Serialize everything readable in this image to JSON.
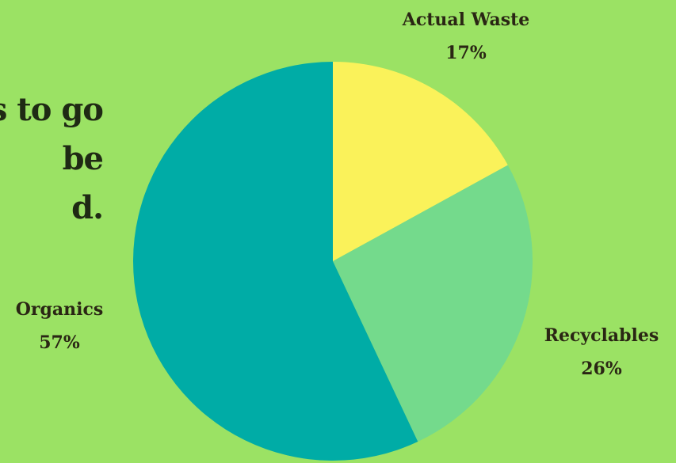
{
  "background_text": [
    "s to go",
    "be",
    "d."
  ],
  "colors": {
    "background": "#9be264",
    "text": "#2a2614"
  },
  "chart_data": {
    "type": "pie",
    "title": "",
    "start_angle_deg": 0,
    "direction": "clockwise",
    "legend": "none",
    "slices": [
      {
        "label": "Actual Waste",
        "value_label": "17%",
        "value": 17,
        "color": "#faf25a"
      },
      {
        "label": "Recyclables",
        "value_label": "26%",
        "value": 26,
        "color": "#74da8c"
      },
      {
        "label": "Organics",
        "value_label": "57%",
        "value": 57,
        "color": "#00aca6"
      }
    ]
  }
}
